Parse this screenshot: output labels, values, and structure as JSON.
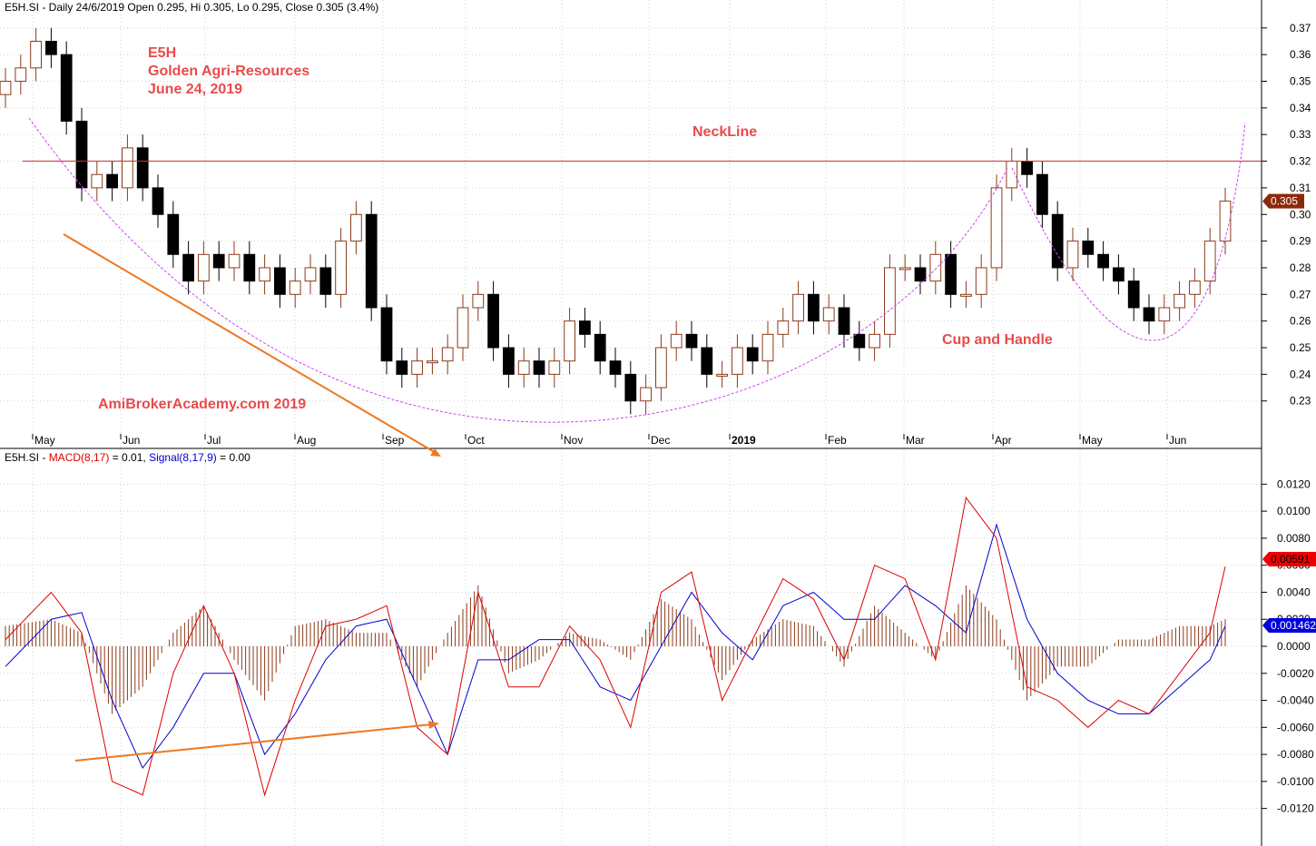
{
  "price_header": {
    "symbol": "E5H.SI",
    "rest": " - Daily 24/6/2019 Open 0.295, Hi 0.305, Lo 0.295, Close 0.305 (3.4%)"
  },
  "macd_header": {
    "symbol": "E5H.SI",
    "macd_label": "MACD(8,17)",
    "macd_value": " = 0.01, ",
    "signal_label": "Signal(8,17,9)",
    "signal_value": " = 0.00"
  },
  "annotations": {
    "ticker": "E5H",
    "company": "Golden Agri-Resources",
    "date": "June 24, 2019",
    "neckline": "NeckLine",
    "pattern": "Cup and Handle",
    "watermark": "AmiBrokerAcademy.com  2019"
  },
  "colors": {
    "annotation_text": "#e84b4b",
    "neckline": "#cc3333",
    "cup_curve": "#cc44ee",
    "trend_arrow": "#ee7722",
    "bar_up": "#8b3a1a",
    "bar_down": "#000000",
    "macd": "#dd0000",
    "signal": "#0000cc",
    "histogram": "#8b3a1a",
    "price_tag": "#8b2a0a",
    "macd_tag": "#ee0000",
    "signal_tag": "#0000dd"
  },
  "chart_data": [
    {
      "type": "candlestick",
      "title": "E5H.SI - Daily 24/6/2019 Open 0.295, Hi 0.305, Lo 0.295, Close 0.305 (3.4%)",
      "x_tick_labels": [
        "May",
        "Jun",
        "Jul",
        "Aug",
        "Sep",
        "Oct",
        "Nov",
        "Dec",
        "2019",
        "Feb",
        "Mar",
        "Apr",
        "May",
        "Jun"
      ],
      "y_ticks": [
        "0.23",
        "0.24",
        "0.25",
        "0.26",
        "0.27",
        "0.28",
        "0.29",
        "0.30",
        "0.31",
        "0.32",
        "0.33",
        "0.34",
        "0.35",
        "0.36",
        "0.37"
      ],
      "ylim": [
        0.219,
        0.373
      ],
      "closes": [
        0.35,
        0.355,
        0.365,
        0.36,
        0.335,
        0.31,
        0.315,
        0.31,
        0.325,
        0.31,
        0.3,
        0.285,
        0.275,
        0.285,
        0.28,
        0.285,
        0.275,
        0.28,
        0.27,
        0.275,
        0.28,
        0.27,
        0.29,
        0.3,
        0.265,
        0.245,
        0.24,
        0.245,
        0.245,
        0.25,
        0.265,
        0.27,
        0.25,
        0.24,
        0.245,
        0.24,
        0.245,
        0.26,
        0.255,
        0.245,
        0.24,
        0.23,
        0.235,
        0.25,
        0.255,
        0.25,
        0.24,
        0.24,
        0.25,
        0.245,
        0.255,
        0.26,
        0.27,
        0.26,
        0.265,
        0.255,
        0.25,
        0.255,
        0.28,
        0.28,
        0.275,
        0.285,
        0.27,
        0.27,
        0.28,
        0.31,
        0.32,
        0.315,
        0.3,
        0.28,
        0.29,
        0.285,
        0.28,
        0.275,
        0.265,
        0.26,
        0.265,
        0.27,
        0.275,
        0.29,
        0.305
      ],
      "last_value_tag": "0.305",
      "neckline": 0.32,
      "labels": [
        "NeckLine",
        "Cup and Handle"
      ]
    },
    {
      "type": "line",
      "title": "E5H.SI - MACD(8,17) = 0.01, Signal(8,17,9) = 0.00",
      "y_ticks": [
        "-0.0120",
        "-0.0100",
        "-0.0080",
        "-0.0060",
        "-0.0040",
        "-0.0020",
        "0.0000",
        "0.0020",
        "0.0040",
        "0.0060",
        "0.0080",
        "0.0100",
        "0.0120"
      ],
      "ylim": [
        -0.0133,
        0.0133
      ],
      "x": [
        0,
        3,
        5,
        7,
        9,
        11,
        13,
        15,
        17,
        19,
        21,
        23,
        25,
        27,
        29,
        31,
        33,
        35,
        37,
        39,
        41,
        43,
        45,
        47,
        49,
        51,
        53,
        55,
        57,
        59,
        61,
        63,
        65,
        67,
        69,
        71,
        73,
        75,
        77,
        79,
        80
      ],
      "series": [
        {
          "name": "MACD(8,17)",
          "values": [
            0.0005,
            0.004,
            0.001,
            -0.01,
            -0.011,
            -0.002,
            0.003,
            -0.002,
            -0.011,
            -0.004,
            0.0015,
            0.002,
            0.003,
            -0.006,
            -0.008,
            0.004,
            -0.003,
            -0.003,
            0.0015,
            -0.001,
            -0.006,
            0.004,
            0.0055,
            -0.004,
            0.0005,
            0.005,
            0.0035,
            -0.001,
            0.006,
            0.005,
            -0.001,
            0.011,
            0.008,
            -0.003,
            -0.004,
            -0.006,
            -0.004,
            -0.005,
            -0.002,
            0.001,
            0.0059
          ]
        },
        {
          "name": "Signal(8,17,9)",
          "values": [
            -0.0015,
            0.002,
            0.0025,
            -0.004,
            -0.009,
            -0.006,
            -0.002,
            -0.002,
            -0.008,
            -0.005,
            -0.001,
            0.0015,
            0.002,
            -0.003,
            -0.008,
            -0.001,
            -0.001,
            0.0005,
            0.0005,
            -0.003,
            -0.004,
            0.0,
            0.004,
            0.001,
            -0.001,
            0.003,
            0.004,
            0.002,
            0.002,
            0.0045,
            0.003,
            0.001,
            0.009,
            0.002,
            -0.002,
            -0.004,
            -0.005,
            -0.005,
            -0.003,
            -0.001,
            0.0015
          ]
        }
      ],
      "histogram": [
        0.0015,
        0.002,
        0.001,
        -0.005,
        -0.003,
        0.001,
        0.003,
        -0.001,
        -0.004,
        0.0015,
        0.002,
        0.001,
        0.001,
        -0.003,
        0.001,
        0.0045,
        -0.002,
        -0.001,
        0.001,
        0.0005,
        -0.001,
        0.0035,
        0.002,
        -0.0025,
        0.0005,
        0.002,
        0.0015,
        -0.0015,
        0.003,
        0.001,
        -0.001,
        0.0045,
        0.002,
        -0.004,
        -0.0015,
        -0.0015,
        0.0005,
        0.0005,
        0.0015,
        0.0015,
        0.002
      ],
      "last_value_tags": [
        "0.00591",
        "0.001462"
      ]
    }
  ]
}
